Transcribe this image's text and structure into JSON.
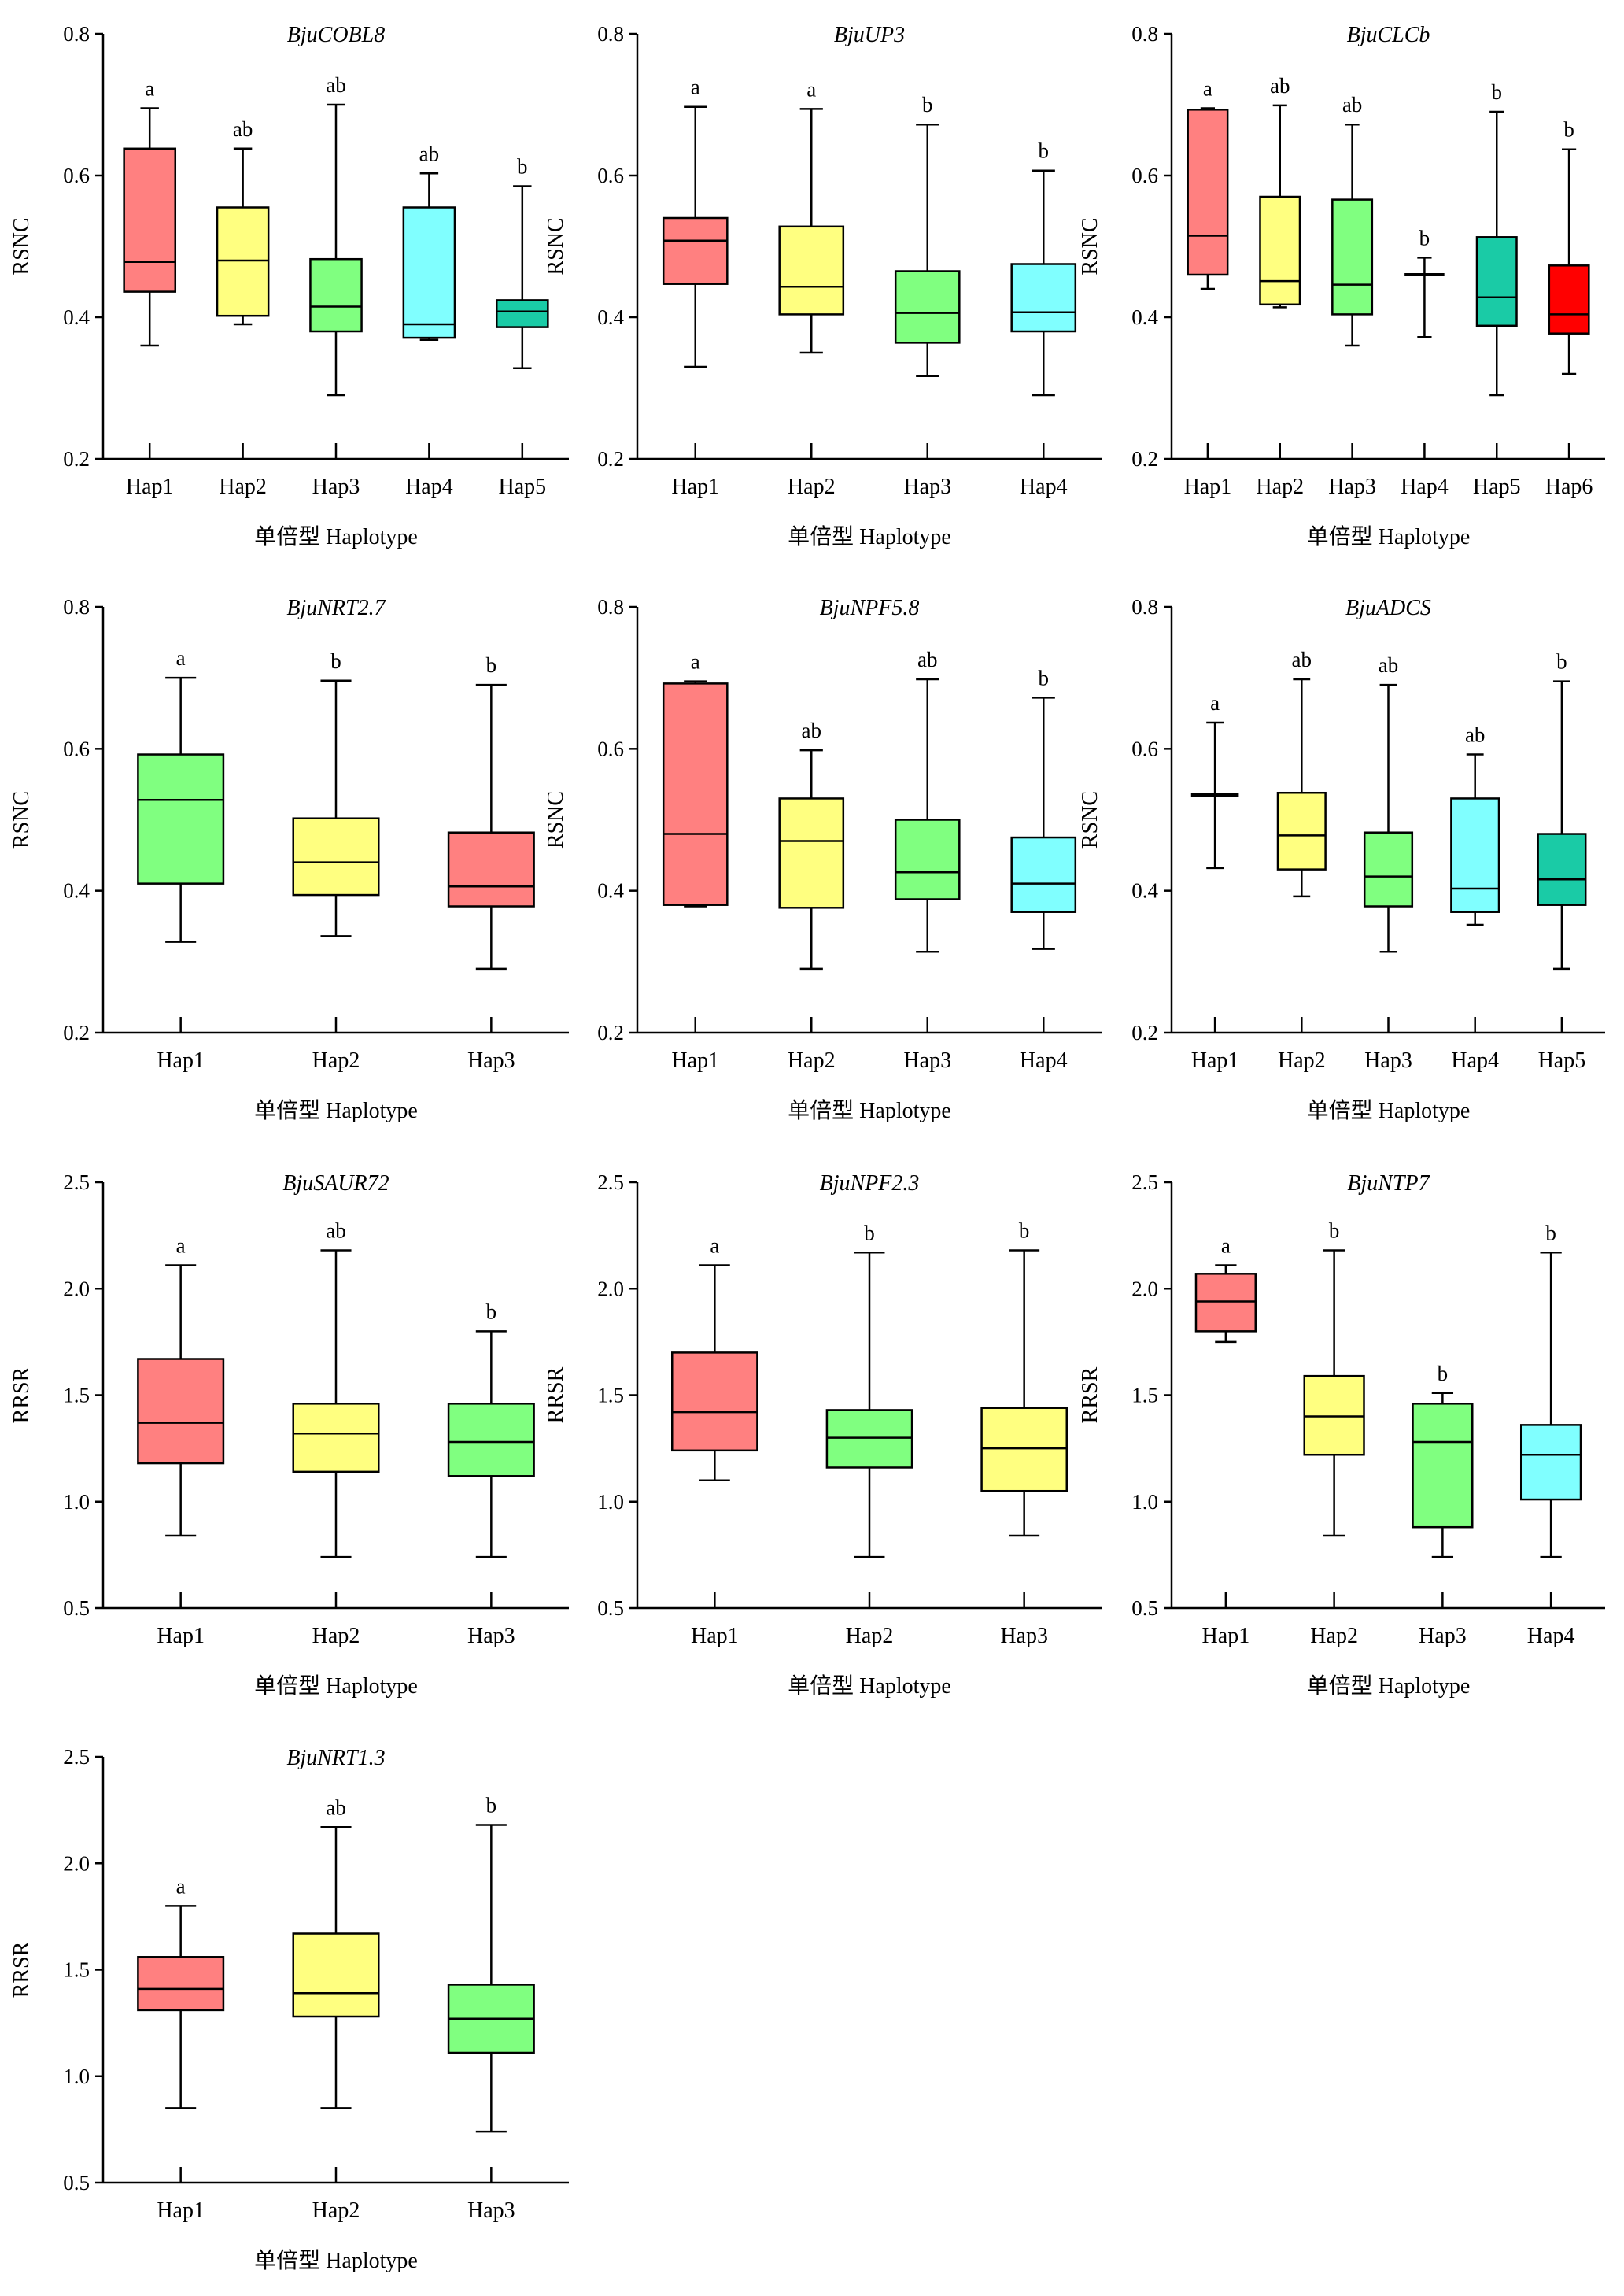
{
  "colors": {
    "salmon": "#FF8080",
    "yellow": "#FFFF80",
    "green": "#80FF80",
    "cyan": "#80FFFF",
    "teal": "#1ACBA6",
    "red": "#FF0000",
    "line": "#000000"
  },
  "chart_data": [
    {
      "type": "boxplot",
      "title": "BjuCOBL8",
      "ylabel": "RSNC",
      "xlabel": "单倍型 Haplotype",
      "ylim": [
        0.2,
        0.8
      ],
      "yticks": [
        "0.2",
        "0.4",
        "0.6",
        "0.8"
      ],
      "categories": [
        "Hap1",
        "Hap2",
        "Hap3",
        "Hap4",
        "Hap5"
      ],
      "boxes": [
        {
          "min": 0.36,
          "q1": 0.436,
          "median": 0.478,
          "q3": 0.638,
          "max": 0.695,
          "letter": "a",
          "color": "#FF8080"
        },
        {
          "min": 0.39,
          "q1": 0.402,
          "median": 0.48,
          "q3": 0.555,
          "max": 0.638,
          "letter": "ab",
          "color": "#FFFF80"
        },
        {
          "min": 0.29,
          "q1": 0.38,
          "median": 0.415,
          "q3": 0.482,
          "max": 0.7,
          "letter": "ab",
          "color": "#80FF80"
        },
        {
          "min": 0.368,
          "q1": 0.371,
          "median": 0.39,
          "q3": 0.555,
          "max": 0.603,
          "letter": "ab",
          "color": "#80FFFF"
        },
        {
          "min": 0.328,
          "q1": 0.386,
          "median": 0.408,
          "q3": 0.424,
          "max": 0.585,
          "letter": "b",
          "color": "#1ACBA6"
        }
      ]
    },
    {
      "type": "boxplot",
      "title": "BjuUP3",
      "ylabel": "RSNC",
      "xlabel": "单倍型 Haplotype",
      "ylim": [
        0.2,
        0.8
      ],
      "yticks": [
        "0.2",
        "0.4",
        "0.6",
        "0.8"
      ],
      "categories": [
        "Hap1",
        "Hap2",
        "Hap3",
        "Hap4"
      ],
      "boxes": [
        {
          "min": 0.33,
          "q1": 0.447,
          "median": 0.508,
          "q3": 0.54,
          "max": 0.697,
          "letter": "a",
          "color": "#FF8080"
        },
        {
          "min": 0.35,
          "q1": 0.404,
          "median": 0.443,
          "q3": 0.528,
          "max": 0.694,
          "letter": "a",
          "color": "#FFFF80"
        },
        {
          "min": 0.317,
          "q1": 0.364,
          "median": 0.406,
          "q3": 0.465,
          "max": 0.672,
          "letter": "b",
          "color": "#80FF80"
        },
        {
          "min": 0.29,
          "q1": 0.38,
          "median": 0.407,
          "q3": 0.475,
          "max": 0.607,
          "letter": "b",
          "color": "#80FFFF"
        }
      ]
    },
    {
      "type": "boxplot",
      "title": "BjuCLCb",
      "ylabel": "RSNC",
      "xlabel": "单倍型 Haplotype",
      "ylim": [
        0.2,
        0.8
      ],
      "yticks": [
        "0.2",
        "0.4",
        "0.6",
        "0.8"
      ],
      "categories": [
        "Hap1",
        "Hap2",
        "Hap3",
        "Hap4",
        "Hap5",
        "Hap6"
      ],
      "boxes": [
        {
          "min": 0.44,
          "q1": 0.46,
          "median": 0.515,
          "q3": 0.693,
          "max": 0.695,
          "letter": "a",
          "color": "#FF8080"
        },
        {
          "min": 0.414,
          "q1": 0.418,
          "median": 0.451,
          "q3": 0.57,
          "max": 0.699,
          "letter": "ab",
          "color": "#FFFF80"
        },
        {
          "min": 0.36,
          "q1": 0.404,
          "median": 0.446,
          "q3": 0.566,
          "max": 0.672,
          "letter": "ab",
          "color": "#80FF80"
        },
        {
          "min": 0.372,
          "q1": 0.46,
          "median": 0.46,
          "q3": 0.46,
          "max": 0.484,
          "letter": "b",
          "color": "#FFFFFF"
        },
        {
          "min": 0.29,
          "q1": 0.388,
          "median": 0.428,
          "q3": 0.513,
          "max": 0.69,
          "letter": "b",
          "color": "#1ACBA6"
        },
        {
          "min": 0.32,
          "q1": 0.377,
          "median": 0.404,
          "q3": 0.473,
          "max": 0.637,
          "letter": "b",
          "color": "#FF0000"
        }
      ]
    },
    {
      "type": "boxplot",
      "title": "BjuNRT2.7",
      "ylabel": "RSNC",
      "xlabel": "单倍型 Haplotype",
      "ylim": [
        0.2,
        0.8
      ],
      "yticks": [
        "0.2",
        "0.4",
        "0.6",
        "0.8"
      ],
      "categories": [
        "Hap1",
        "Hap2",
        "Hap3"
      ],
      "boxes": [
        {
          "min": 0.328,
          "q1": 0.41,
          "median": 0.528,
          "q3": 0.592,
          "max": 0.7,
          "letter": "a",
          "color": "#80FF80"
        },
        {
          "min": 0.336,
          "q1": 0.394,
          "median": 0.44,
          "q3": 0.502,
          "max": 0.696,
          "letter": "b",
          "color": "#FFFF80"
        },
        {
          "min": 0.29,
          "q1": 0.378,
          "median": 0.406,
          "q3": 0.482,
          "max": 0.69,
          "letter": "b",
          "color": "#FF8080"
        }
      ]
    },
    {
      "type": "boxplot",
      "title": "BjuNPF5.8",
      "ylabel": "RSNC",
      "xlabel": "单倍型 Haplotype",
      "ylim": [
        0.2,
        0.8
      ],
      "yticks": [
        "0.2",
        "0.4",
        "0.6",
        "0.8"
      ],
      "categories": [
        "Hap1",
        "Hap2",
        "Hap3",
        "Hap4"
      ],
      "boxes": [
        {
          "min": 0.378,
          "q1": 0.38,
          "median": 0.48,
          "q3": 0.692,
          "max": 0.695,
          "letter": "a",
          "color": "#FF8080"
        },
        {
          "min": 0.29,
          "q1": 0.376,
          "median": 0.47,
          "q3": 0.53,
          "max": 0.598,
          "letter": "ab",
          "color": "#FFFF80"
        },
        {
          "min": 0.314,
          "q1": 0.388,
          "median": 0.426,
          "q3": 0.5,
          "max": 0.698,
          "letter": "ab",
          "color": "#80FF80"
        },
        {
          "min": 0.318,
          "q1": 0.37,
          "median": 0.41,
          "q3": 0.475,
          "max": 0.672,
          "letter": "b",
          "color": "#80FFFF"
        }
      ]
    },
    {
      "type": "boxplot",
      "title": "BjuADCS",
      "ylabel": "RSNC",
      "xlabel": "单倍型 Haplotype",
      "ylim": [
        0.2,
        0.8
      ],
      "yticks": [
        "0.2",
        "0.4",
        "0.6",
        "0.8"
      ],
      "categories": [
        "Hap1",
        "Hap2",
        "Hap3",
        "Hap4",
        "Hap5"
      ],
      "boxes": [
        {
          "min": 0.432,
          "q1": 0.535,
          "median": 0.535,
          "q3": 0.535,
          "max": 0.637,
          "letter": "a",
          "color": "#FFFFFF"
        },
        {
          "min": 0.392,
          "q1": 0.43,
          "median": 0.478,
          "q3": 0.538,
          "max": 0.698,
          "letter": "ab",
          "color": "#FFFF80"
        },
        {
          "min": 0.314,
          "q1": 0.378,
          "median": 0.42,
          "q3": 0.482,
          "max": 0.69,
          "letter": "ab",
          "color": "#80FF80"
        },
        {
          "min": 0.352,
          "q1": 0.37,
          "median": 0.403,
          "q3": 0.53,
          "max": 0.592,
          "letter": "ab",
          "color": "#80FFFF"
        },
        {
          "min": 0.29,
          "q1": 0.38,
          "median": 0.416,
          "q3": 0.48,
          "max": 0.695,
          "letter": "b",
          "color": "#1ACBA6"
        }
      ]
    },
    {
      "type": "boxplot",
      "title": "BjuSAUR72",
      "ylabel": "RRSR",
      "xlabel": "单倍型 Haplotype",
      "ylim": [
        0.5,
        2.5
      ],
      "yticks": [
        "0.5",
        "1.0",
        "1.5",
        "2.0",
        "2.5"
      ],
      "categories": [
        "Hap1",
        "Hap2",
        "Hap3"
      ],
      "boxes": [
        {
          "min": 0.84,
          "q1": 1.18,
          "median": 1.37,
          "q3": 1.67,
          "max": 2.11,
          "letter": "a",
          "color": "#FF8080"
        },
        {
          "min": 0.74,
          "q1": 1.14,
          "median": 1.32,
          "q3": 1.46,
          "max": 2.18,
          "letter": "ab",
          "color": "#FFFF80"
        },
        {
          "min": 0.74,
          "q1": 1.12,
          "median": 1.28,
          "q3": 1.46,
          "max": 1.8,
          "letter": "b",
          "color": "#80FF80"
        }
      ]
    },
    {
      "type": "boxplot",
      "title": "BjuNPF2.3",
      "ylabel": "RRSR",
      "xlabel": "单倍型 Haplotype",
      "ylim": [
        0.5,
        2.5
      ],
      "yticks": [
        "0.5",
        "1.0",
        "1.5",
        "2.0",
        "2.5"
      ],
      "categories": [
        "Hap1",
        "Hap2",
        "Hap3"
      ],
      "boxes": [
        {
          "min": 1.1,
          "q1": 1.24,
          "median": 1.42,
          "q3": 1.7,
          "max": 2.11,
          "letter": "a",
          "color": "#FF8080"
        },
        {
          "min": 0.74,
          "q1": 1.16,
          "median": 1.3,
          "q3": 1.43,
          "max": 2.17,
          "letter": "b",
          "color": "#80FF80"
        },
        {
          "min": 0.84,
          "q1": 1.05,
          "median": 1.25,
          "q3": 1.44,
          "max": 2.18,
          "letter": "b",
          "color": "#FFFF80"
        }
      ]
    },
    {
      "type": "boxplot",
      "title": "BjuNTP7",
      "ylabel": "RRSR",
      "xlabel": "单倍型 Haplotype",
      "ylim": [
        0.5,
        2.5
      ],
      "yticks": [
        "0.5",
        "1.0",
        "1.5",
        "2.0",
        "2.5"
      ],
      "categories": [
        "Hap1",
        "Hap2",
        "Hap3",
        "Hap4"
      ],
      "boxes": [
        {
          "min": 1.75,
          "q1": 1.8,
          "median": 1.94,
          "q3": 2.07,
          "max": 2.11,
          "letter": "a",
          "color": "#FF8080"
        },
        {
          "min": 0.84,
          "q1": 1.22,
          "median": 1.4,
          "q3": 1.59,
          "max": 2.18,
          "letter": "b",
          "color": "#FFFF80"
        },
        {
          "min": 0.74,
          "q1": 0.88,
          "median": 1.28,
          "q3": 1.46,
          "max": 1.51,
          "letter": "b",
          "color": "#80FF80"
        },
        {
          "min": 0.74,
          "q1": 1.01,
          "median": 1.22,
          "q3": 1.36,
          "max": 2.17,
          "letter": "b",
          "color": "#80FFFF"
        }
      ]
    },
    {
      "type": "boxplot",
      "title": "BjuNRT1.3",
      "ylabel": "RRSR",
      "xlabel": "单倍型 Haplotype",
      "ylim": [
        0.5,
        2.5
      ],
      "yticks": [
        "0.5",
        "1.0",
        "1.5",
        "2.0",
        "2.5"
      ],
      "categories": [
        "Hap1",
        "Hap2",
        "Hap3"
      ],
      "boxes": [
        {
          "min": 0.85,
          "q1": 1.31,
          "median": 1.41,
          "q3": 1.56,
          "max": 1.8,
          "letter": "a",
          "color": "#FF8080"
        },
        {
          "min": 0.85,
          "q1": 1.28,
          "median": 1.39,
          "q3": 1.67,
          "max": 2.17,
          "letter": "ab",
          "color": "#FFFF80"
        },
        {
          "min": 0.74,
          "q1": 1.11,
          "median": 1.27,
          "q3": 1.43,
          "max": 2.18,
          "letter": "b",
          "color": "#80FF80"
        }
      ]
    }
  ]
}
